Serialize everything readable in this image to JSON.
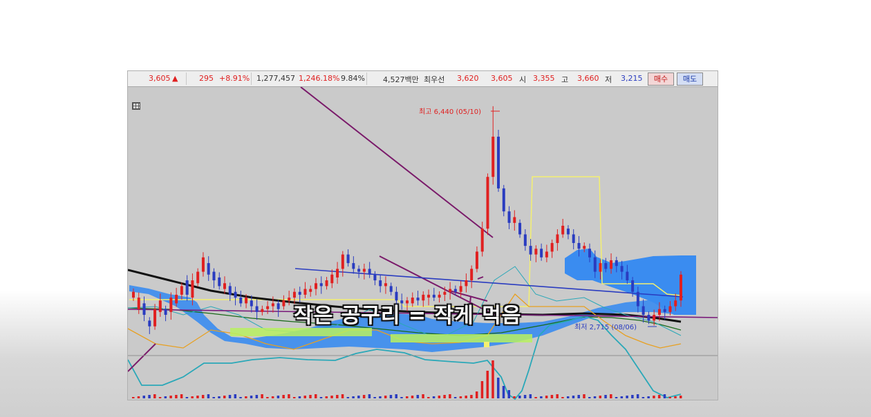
{
  "quote_bar": {
    "price": "3,605",
    "direction": "▲",
    "change": "295",
    "change_pct": "+8.91%",
    "volume": "1,277,457",
    "volume_pct": "1,246.18%",
    "turnover": "9.84%",
    "amount": "4,527백만",
    "best_ask_label": "최우선",
    "best_ask": "3,620",
    "best_bid": "3,605",
    "open_label": "시",
    "open": "3,355",
    "high_label": "고",
    "high": "3,660",
    "low_label": "저",
    "low": "3,215",
    "buy_button": "매수",
    "sell_button": "매도"
  },
  "chart": {
    "high_annotation": "최고 6,440 (05/10)",
    "low_annotation": "최저 2,715 (08/06)"
  },
  "caption": "작은 공구리 = 작게 먹음",
  "colors": {
    "up": "#e02020",
    "down": "#2a3cc0",
    "cloud": "#3a8cf0",
    "ma_long": "#111111",
    "bollinger": "#2aa8b8",
    "box_yellow": "#f4f070",
    "highlight_green": "#b8f060",
    "trend_purple": "#6a1a7a"
  },
  "chart_data": {
    "type": "candlestick",
    "high": {
      "value": 6440,
      "date": "05/10"
    },
    "low": {
      "value": 2715,
      "date": "08/06"
    },
    "last": {
      "open": 3355,
      "high": 3660,
      "low": 3215,
      "close": 3605
    },
    "candles": [
      [
        1,
        3300,
        3200
      ],
      [
        1,
        3000,
        3200
      ],
      [
        0,
        3100,
        2900
      ],
      [
        0,
        2800,
        2700
      ],
      [
        1,
        2700,
        3000
      ],
      [
        1,
        2950,
        3150
      ],
      [
        0,
        3000,
        2900
      ],
      [
        1,
        2950,
        3200
      ],
      [
        1,
        3100,
        3250
      ],
      [
        1,
        3250,
        3400
      ],
      [
        0,
        3500,
        3250
      ],
      [
        1,
        3200,
        3500
      ],
      [
        1,
        3450,
        3650
      ],
      [
        1,
        3650,
        3900
      ],
      [
        0,
        3800,
        3600
      ],
      [
        0,
        3650,
        3500
      ],
      [
        0,
        3550,
        3400
      ],
      [
        1,
        3350,
        3450
      ],
      [
        0,
        3400,
        3250
      ],
      [
        0,
        3300,
        3200
      ],
      [
        0,
        3200,
        3100
      ],
      [
        1,
        3100,
        3200
      ],
      [
        0,
        3150,
        3050
      ],
      [
        0,
        3050,
        2950
      ],
      [
        1,
        2950,
        3000
      ],
      [
        1,
        3000,
        3050
      ],
      [
        1,
        3050,
        3100
      ],
      [
        0,
        3100,
        3000
      ],
      [
        1,
        3050,
        3150
      ],
      [
        1,
        3150,
        3200
      ],
      [
        1,
        3200,
        3300
      ],
      [
        0,
        3300,
        3250
      ],
      [
        1,
        3250,
        3350
      ],
      [
        1,
        3300,
        3350
      ],
      [
        1,
        3350,
        3450
      ],
      [
        0,
        3450,
        3400
      ],
      [
        1,
        3400,
        3500
      ],
      [
        1,
        3450,
        3600
      ],
      [
        1,
        3550,
        3700
      ],
      [
        1,
        3700,
        3950
      ],
      [
        0,
        3950,
        3800
      ],
      [
        0,
        3800,
        3700
      ],
      [
        0,
        3700,
        3650
      ],
      [
        1,
        3650,
        3700
      ],
      [
        0,
        3700,
        3600
      ],
      [
        0,
        3600,
        3500
      ],
      [
        0,
        3500,
        3400
      ],
      [
        1,
        3400,
        3450
      ],
      [
        0,
        3400,
        3300
      ],
      [
        0,
        3300,
        3150
      ],
      [
        0,
        3150,
        3100
      ],
      [
        1,
        3100,
        3150
      ],
      [
        1,
        3100,
        3200
      ],
      [
        0,
        3200,
        3150
      ],
      [
        1,
        3150,
        3250
      ],
      [
        1,
        3200,
        3250
      ],
      [
        0,
        3250,
        3200
      ],
      [
        1,
        3200,
        3250
      ],
      [
        1,
        3250,
        3300
      ],
      [
        1,
        3300,
        3350
      ],
      [
        0,
        3350,
        3300
      ],
      [
        1,
        3300,
        3400
      ],
      [
        1,
        3400,
        3500
      ],
      [
        1,
        3500,
        3700
      ],
      [
        1,
        3700,
        4000
      ],
      [
        1,
        4000,
        4400
      ],
      [
        1,
        4400,
        5300
      ],
      [
        1,
        5300,
        6000
      ],
      [
        0,
        6000,
        5100
      ],
      [
        0,
        5100,
        4700
      ],
      [
        0,
        4700,
        4500
      ],
      [
        1,
        4500,
        4600
      ],
      [
        0,
        4500,
        4300
      ],
      [
        0,
        4300,
        4100
      ],
      [
        0,
        4100,
        3950
      ],
      [
        1,
        3950,
        4050
      ],
      [
        0,
        4050,
        3900
      ],
      [
        1,
        3900,
        4000
      ],
      [
        1,
        4000,
        4150
      ],
      [
        1,
        4150,
        4300
      ],
      [
        1,
        4300,
        4450
      ],
      [
        0,
        4400,
        4300
      ],
      [
        0,
        4300,
        4150
      ],
      [
        0,
        4150,
        4050
      ],
      [
        1,
        4050,
        4100
      ],
      [
        0,
        4050,
        3900
      ],
      [
        0,
        3900,
        3650
      ],
      [
        1,
        3650,
        3800
      ],
      [
        0,
        3800,
        3700
      ],
      [
        1,
        3700,
        3850
      ],
      [
        0,
        3850,
        3750
      ],
      [
        0,
        3750,
        3650
      ],
      [
        0,
        3650,
        3500
      ],
      [
        0,
        3500,
        3300
      ],
      [
        0,
        3300,
        3050
      ],
      [
        0,
        3050,
        2900
      ],
      [
        0,
        2900,
        2800
      ],
      [
        1,
        2800,
        2900
      ],
      [
        1,
        2900,
        3000
      ],
      [
        0,
        3000,
        2950
      ],
      [
        1,
        2950,
        3050
      ],
      [
        1,
        3050,
        3150
      ],
      [
        1,
        3150,
        3600
      ]
    ]
  }
}
